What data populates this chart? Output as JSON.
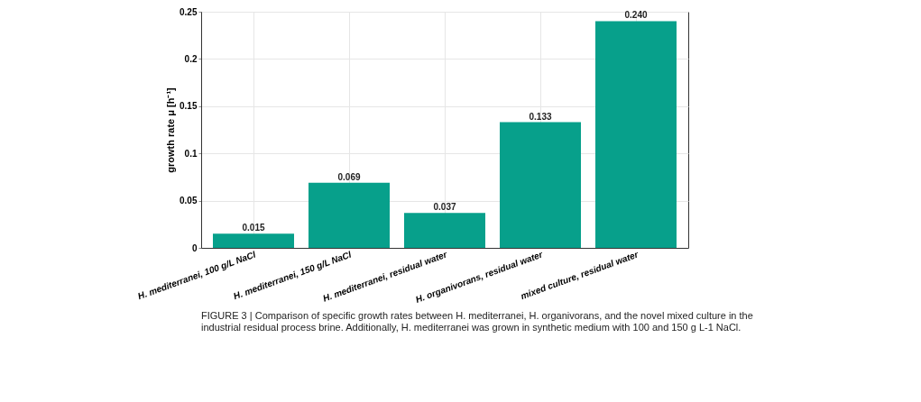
{
  "chart_data": {
    "type": "bar",
    "categories": [
      "H. mediterranei, 100 g/L NaCl",
      "H. mediterranei, 150 g/L NaCl",
      "H. mediterranei, residual water",
      "H. organivorans, residual water",
      "mixed culture, residual water"
    ],
    "values": [
      0.015,
      0.069,
      0.037,
      0.133,
      0.24
    ],
    "color": "#07a08b",
    "ylabel": "growth rate μ [h⁻¹]",
    "ylim": [
      0,
      0.25
    ],
    "yticks": [
      0,
      0.05,
      0.1,
      0.15,
      0.2,
      0.25
    ],
    "grid": true,
    "value_labels": [
      "0.015",
      "0.069",
      "0.037",
      "0.133",
      "0.240"
    ],
    "annotations": [
      "FIGURE 3 | Comparison of specific growth rates between H. mediterranei, H. organivorans, and the novel mixed culture in the industrial residual process brine. Additionally, H. mediterranei was grown in synthetic medium with 100 and 150 g L-1 NaCl."
    ]
  }
}
